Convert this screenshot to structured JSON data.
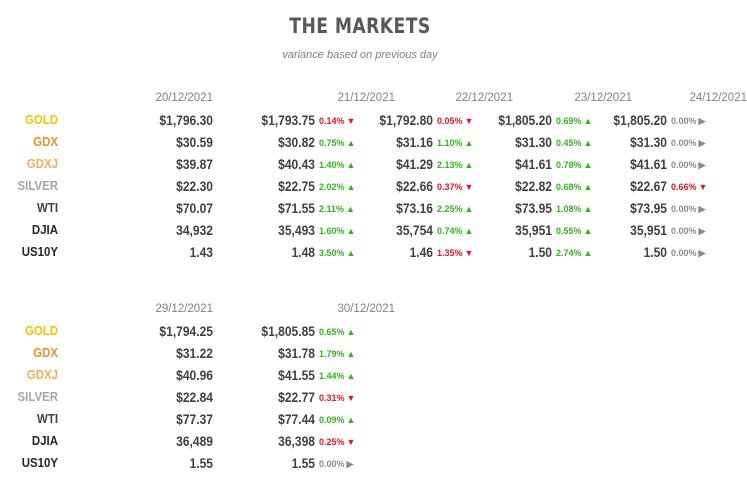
{
  "chart_data": {
    "type": "table",
    "title": "THE MARKETS",
    "subtitle": "variance based on previous day",
    "colors": {
      "GOLD": "#f2c300",
      "GDX": "#e5902e",
      "GDXJ": "#efac63",
      "SILVER": "#a6a6a6",
      "WTI": "#404040",
      "DJIA": "#262626",
      "US10Y": "#262626",
      "up": "#35b11f",
      "down": "#d9182b",
      "flat": "#8a8a8a"
    },
    "rows": [
      "GOLD",
      "GDX",
      "GDXJ",
      "SILVER",
      "WTI",
      "DJIA",
      "US10Y"
    ],
    "blocks": [
      {
        "columns": [
          {
            "date": "20/12/2021",
            "values": [
              "$1,796.30",
              "$30.59",
              "$39.87",
              "$22.30",
              "$70.07",
              "34,932",
              "1.43"
            ],
            "changes": null
          },
          {
            "date": "21/12/2021",
            "values": [
              "$1,793.75",
              "$30.82",
              "$40.43",
              "$22.75",
              "$71.55",
              "35,493",
              "1.48"
            ],
            "changes": [
              {
                "pct": "0.14%",
                "dir": "down"
              },
              {
                "pct": "0.75%",
                "dir": "up"
              },
              {
                "pct": "1.40%",
                "dir": "up"
              },
              {
                "pct": "2.02%",
                "dir": "up"
              },
              {
                "pct": "2.11%",
                "dir": "up"
              },
              {
                "pct": "1.60%",
                "dir": "up"
              },
              {
                "pct": "3.50%",
                "dir": "up"
              }
            ]
          },
          {
            "date": "22/12/2021",
            "values": [
              "$1,792.80",
              "$31.16",
              "$41.29",
              "$22.66",
              "$73.16",
              "35,754",
              "1.46"
            ],
            "changes": [
              {
                "pct": "0.05%",
                "dir": "down"
              },
              {
                "pct": "1.10%",
                "dir": "up"
              },
              {
                "pct": "2.13%",
                "dir": "up"
              },
              {
                "pct": "0.37%",
                "dir": "down"
              },
              {
                "pct": "2.25%",
                "dir": "up"
              },
              {
                "pct": "0.74%",
                "dir": "up"
              },
              {
                "pct": "1.35%",
                "dir": "down"
              }
            ]
          },
          {
            "date": "23/12/2021",
            "values": [
              "$1,805.20",
              "$31.30",
              "$41.61",
              "$22.82",
              "$73.95",
              "35,951",
              "1.50"
            ],
            "changes": [
              {
                "pct": "0.69%",
                "dir": "up"
              },
              {
                "pct": "0.45%",
                "dir": "up"
              },
              {
                "pct": "0.78%",
                "dir": "up"
              },
              {
                "pct": "0.68%",
                "dir": "up"
              },
              {
                "pct": "1.08%",
                "dir": "up"
              },
              {
                "pct": "0.55%",
                "dir": "up"
              },
              {
                "pct": "2.74%",
                "dir": "up"
              }
            ]
          },
          {
            "date": "24/12/2021",
            "values": [
              "$1,805.20",
              "$31.30",
              "$41.61",
              "$22.67",
              "$73.95",
              "35,951",
              "1.50"
            ],
            "changes": [
              {
                "pct": "0.00%",
                "dir": "flat"
              },
              {
                "pct": "0.00%",
                "dir": "flat"
              },
              {
                "pct": "0.00%",
                "dir": "flat"
              },
              {
                "pct": "0.66%",
                "dir": "down"
              },
              {
                "pct": "0.00%",
                "dir": "flat"
              },
              {
                "pct": "0.00%",
                "dir": "flat"
              },
              {
                "pct": "0.00%",
                "dir": "flat"
              }
            ]
          }
        ]
      },
      {
        "columns": [
          {
            "date": "29/12/2021",
            "values": [
              "$1,794.25",
              "$31.22",
              "$40.96",
              "$22.84",
              "$77.37",
              "36,489",
              "1.55"
            ],
            "changes": null
          },
          {
            "date": "30/12/2021",
            "values": [
              "$1,805.85",
              "$31.78",
              "$41.55",
              "$22.77",
              "$77.44",
              "36,398",
              "1.55"
            ],
            "changes": [
              {
                "pct": "0.65%",
                "dir": "up"
              },
              {
                "pct": "1.79%",
                "dir": "up"
              },
              {
                "pct": "1.44%",
                "dir": "up"
              },
              {
                "pct": "0.31%",
                "dir": "down"
              },
              {
                "pct": "0.09%",
                "dir": "up"
              },
              {
                "pct": "0.25%",
                "dir": "down"
              },
              {
                "pct": "0.00%",
                "dir": "flat"
              }
            ]
          }
        ]
      }
    ]
  }
}
